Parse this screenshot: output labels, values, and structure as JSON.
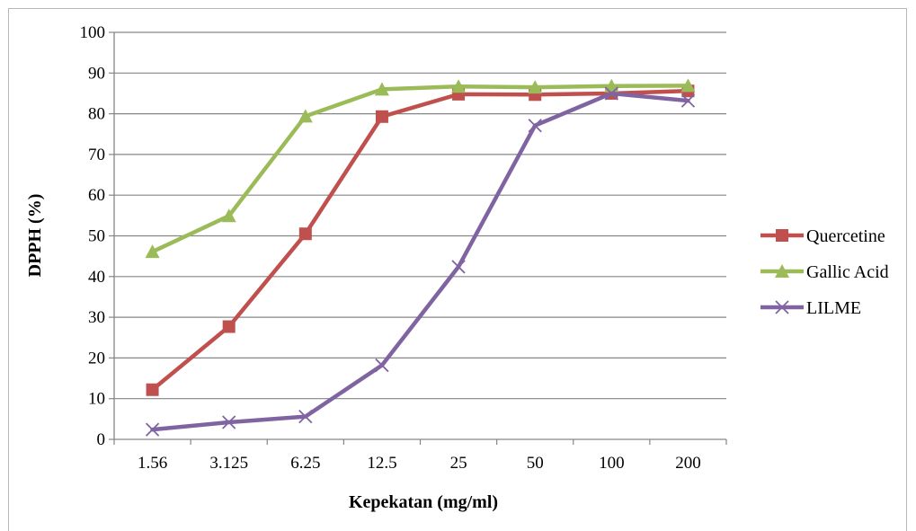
{
  "chart_data": {
    "type": "line",
    "title": "",
    "xlabel": "Kepekatan (mg/ml)",
    "ylabel": "DPPH (%)",
    "ylim": [
      0,
      100
    ],
    "ytick_step": 10,
    "yticks": [
      "0",
      "10",
      "20",
      "30",
      "40",
      "50",
      "60",
      "70",
      "80",
      "90",
      "100"
    ],
    "categories": [
      "1.56",
      "3.125",
      "6.25",
      "12.5",
      "25",
      "50",
      "100",
      "200"
    ],
    "grid": "horizontal",
    "legend_position": "right",
    "series": [
      {
        "name": "Quercetine",
        "color": "#c0504d",
        "marker": "square",
        "values": [
          12.2,
          27.7,
          50.5,
          79.3,
          84.8,
          84.7,
          85.0,
          85.6
        ]
      },
      {
        "name": "Gallic Acid",
        "color": "#9bbb59",
        "marker": "triangle",
        "values": [
          46.1,
          54.9,
          79.4,
          86.0,
          86.7,
          86.5,
          86.8,
          86.9
        ]
      },
      {
        "name": "LILME",
        "color": "#8064a2",
        "marker": "x",
        "values": [
          2.4,
          4.2,
          5.6,
          18.2,
          42.4,
          77.1,
          85.0,
          83.2
        ]
      }
    ]
  }
}
